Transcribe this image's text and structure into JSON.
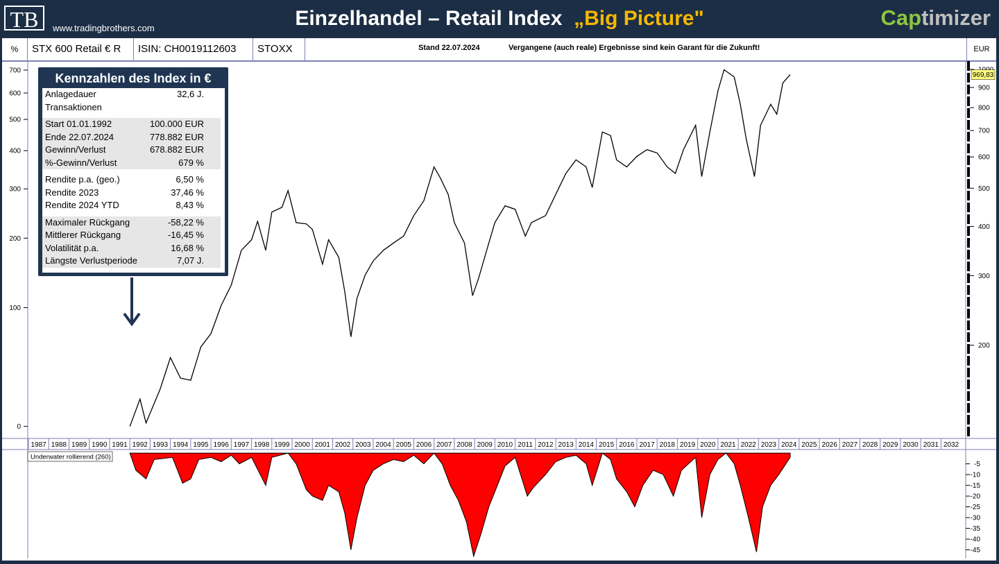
{
  "header": {
    "logo": "TB",
    "site": "www.tradingbrothers.com",
    "title": "Einzelhandel – Retail Index",
    "title_highlight": "„Big Picture\"",
    "brand_a": "Cap",
    "brand_b": "timizer"
  },
  "toolbar": {
    "unit_left": "%",
    "name": "STX 600 Retail € R",
    "isin": "ISIN: CH0019112603",
    "provider": "STOXX",
    "date": "Stand 22.07.2024",
    "disclaimer": "Vergangene (auch reale) Ergebnisse sind kein Garant für die Zukunft!",
    "unit_right": "EUR"
  },
  "info_box": {
    "title": "Kennzahlen des Index in €",
    "groups": [
      {
        "shaded": false,
        "rows": [
          [
            "Anlagedauer",
            "32,6 J."
          ],
          [
            "Transaktionen"
          ]
        ]
      },
      {
        "shaded": true,
        "rows": [
          [
            "Start  01.01.1992",
            "100.000 EUR"
          ],
          [
            "Ende 22.07.2024",
            "778.882 EUR"
          ],
          [
            "Gewinn/Verlust",
            "678.882 EUR"
          ],
          [
            "%-Gewinn/Verlust",
            "679 %"
          ]
        ]
      },
      {
        "shaded": false,
        "rows": [
          [
            "Rendite p.a. (geo.)",
            "6,50 %"
          ],
          [
            "Rendite 2023",
            "37,46 %"
          ],
          [
            "Rendite 2024 YTD",
            "8,43 %"
          ]
        ]
      },
      {
        "shaded": true,
        "rows": [
          [
            "Maximaler Rückgang",
            "-58,22 %"
          ],
          [
            "Mittlerer Rückgang",
            "-16,45 %"
          ],
          [
            "Volatilität p.a.",
            "16,68 %"
          ],
          [
            "Längste Verlustperiode",
            "7,07 J."
          ]
        ]
      }
    ]
  },
  "chart_data": [
    {
      "type": "line",
      "log_scale": true,
      "color": "#000000",
      "x": [
        1992.0,
        1992.5,
        1992.8,
        1993.5,
        1994.0,
        1994.5,
        1995.0,
        1995.5,
        1996.0,
        1996.5,
        1997.0,
        1997.5,
        1998.0,
        1998.3,
        1998.7,
        1999.0,
        1999.5,
        1999.8,
        2000.2,
        2000.7,
        2001.0,
        2001.5,
        2001.8,
        2002.3,
        2002.6,
        2002.9,
        2003.2,
        2003.6,
        2004.0,
        2004.5,
        2005.0,
        2005.5,
        2006.0,
        2006.5,
        2007.0,
        2007.3,
        2007.7,
        2008.0,
        2008.5,
        2008.9,
        2009.2,
        2009.7,
        2010.0,
        2010.5,
        2011.0,
        2011.5,
        2011.8,
        2012.5,
        2013.0,
        2013.5,
        2014.0,
        2014.5,
        2014.8,
        2015.3,
        2015.7,
        2016.0,
        2016.5,
        2017.0,
        2017.5,
        2018.0,
        2018.5,
        2018.9,
        2019.3,
        2019.9,
        2020.2,
        2020.6,
        2021.0,
        2021.3,
        2021.8,
        2022.1,
        2022.4,
        2022.8,
        2023.1,
        2023.6,
        2023.9,
        2024.2,
        2024.56
      ],
      "values": [
        124.5,
        146,
        127,
        155,
        186,
        165,
        163,
        198,
        214,
        252,
        284,
        348,
        370,
        412,
        348,
        435,
        447,
        493,
        409,
        406,
        393,
        321,
        370,
        334,
        273,
        210,
        263,
        301,
        327,
        348,
        363,
        378,
        426,
        465,
        566,
        532,
        482,
        409,
        363,
        267,
        296,
        363,
        409,
        451,
        442,
        378,
        409,
        426,
        482,
        545,
        590,
        566,
        502,
        694,
        680,
        590,
        566,
        602,
        626,
        614,
        566,
        545,
        626,
        722,
        535,
        694,
        883,
        998,
        957,
        816,
        664,
        535,
        722,
        816,
        770,
        924,
        969.83
      ],
      "last_label": "969,83",
      "xlim": [
        1987,
        2033.25
      ],
      "xticks": [
        1987,
        1988,
        1989,
        1990,
        1991,
        1992,
        1993,
        1994,
        1995,
        1996,
        1997,
        1998,
        1999,
        2000,
        2001,
        2002,
        2003,
        2004,
        2005,
        2006,
        2007,
        2008,
        2009,
        2010,
        2011,
        2012,
        2013,
        2014,
        2015,
        2016,
        2017,
        2018,
        2019,
        2020,
        2021,
        2022,
        2023,
        2024,
        2025,
        2026,
        2027,
        2028,
        2029,
        2030,
        2031,
        2032
      ],
      "ylim": [
        117,
        1050
      ],
      "yticks": [
        {
          "value": 996,
          "label": "700"
        },
        {
          "value": 871.5,
          "label": "600"
        },
        {
          "value": 747,
          "label": "500"
        },
        {
          "value": 622.5,
          "label": "400"
        },
        {
          "value": 498,
          "label": "300"
        },
        {
          "value": 373.5,
          "label": "200"
        },
        {
          "value": 249,
          "label": "100"
        },
        {
          "value": 124.5,
          "label": "0"
        }
      ],
      "y2lim": [
        117,
        1050
      ],
      "y2ticks": [
        1000,
        900,
        800,
        700,
        600,
        500,
        400,
        300,
        200
      ]
    },
    {
      "type": "area",
      "color": "#ff0000",
      "legend": "Underwater rollierend (260)",
      "x": [
        1992.0,
        1992.3,
        1992.8,
        1993.2,
        1994.1,
        1994.6,
        1995.0,
        1995.4,
        1996.0,
        1996.5,
        1997.0,
        1997.4,
        1998.0,
        1998.7,
        1999.0,
        1999.8,
        2000.2,
        2000.7,
        2001.0,
        2001.5,
        2001.8,
        2002.3,
        2002.6,
        2002.9,
        2003.2,
        2003.6,
        2004.0,
        2004.5,
        2005.0,
        2005.5,
        2006.0,
        2006.5,
        2007.0,
        2007.4,
        2007.8,
        2008.2,
        2008.6,
        2008.95,
        2009.3,
        2009.7,
        2010.0,
        2010.5,
        2011.0,
        2011.6,
        2011.9,
        2012.5,
        2013.0,
        2013.5,
        2014.0,
        2014.5,
        2014.8,
        2015.3,
        2015.7,
        2016.0,
        2016.5,
        2016.9,
        2017.3,
        2017.8,
        2018.3,
        2018.8,
        2019.2,
        2019.9,
        2020.2,
        2020.6,
        2021.0,
        2021.4,
        2021.8,
        2022.1,
        2022.5,
        2022.9,
        2023.2,
        2023.6,
        2024.0,
        2024.56
      ],
      "values": [
        0,
        -8,
        -12,
        -3,
        -2,
        -14,
        -12,
        -3,
        -2,
        -4,
        -1,
        -5,
        -2,
        -15,
        -2,
        0,
        -5,
        -17,
        -20,
        -22,
        -15,
        -18,
        -28,
        -45,
        -30,
        -15,
        -8,
        -5,
        -3,
        -4,
        -1,
        -5,
        0,
        -5,
        -15,
        -22,
        -32,
        -48,
        -38,
        -25,
        -18,
        -6,
        -2,
        -20,
        -16,
        -10,
        -4,
        -2,
        -1,
        -5,
        -15,
        0,
        -3,
        -12,
        -18,
        -25,
        -15,
        -8,
        -10,
        -20,
        -8,
        -2,
        -30,
        -10,
        -3,
        0,
        -5,
        -15,
        -30,
        -46,
        -25,
        -15,
        -10,
        -2
      ],
      "xlim": [
        1987,
        2033.25
      ],
      "ylim": [
        -49,
        1
      ],
      "y2ticks": [
        -5,
        -10,
        -15,
        -20,
        -25,
        -30,
        -35,
        -40,
        -45
      ]
    }
  ]
}
